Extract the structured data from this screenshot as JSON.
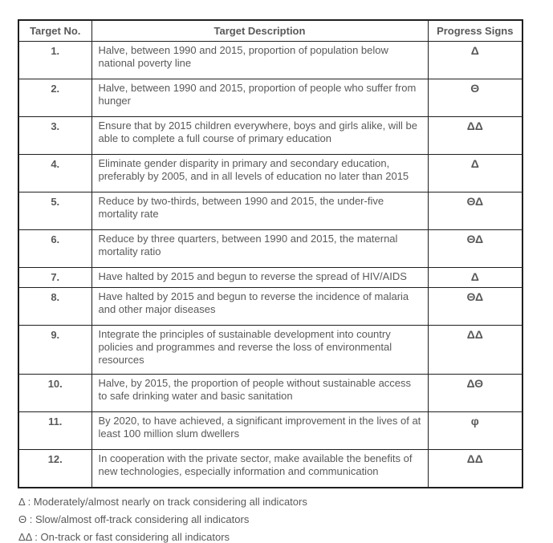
{
  "table": {
    "headers": {
      "no": "Target No.",
      "description": "Target Description",
      "progress": "Progress Signs"
    },
    "rows": [
      {
        "no": "1.",
        "description": "Halve, between 1990 and 2015, proportion of population below national poverty line",
        "progress": "Δ"
      },
      {
        "no": "2.",
        "description": "Halve, between 1990 and 2015, proportion of people who suffer from hunger",
        "progress": "Θ"
      },
      {
        "no": "3.",
        "description": "Ensure that by 2015 children everywhere, boys and girls alike, will be able to complete a full course of primary education",
        "progress": "ΔΔ"
      },
      {
        "no": "4.",
        "description": "Eliminate gender disparity in primary and secondary education, preferably by 2005, and in all levels of education no later than 2015",
        "progress": "Δ"
      },
      {
        "no": "5.",
        "description": "Reduce by two-thirds, between 1990 and 2015, the under-five mortality rate",
        "progress": "ΘΔ"
      },
      {
        "no": "6.",
        "description": "Reduce by three quarters, between 1990 and 2015, the maternal mortality ratio",
        "progress": "ΘΔ"
      },
      {
        "no": "7.",
        "description": "Have halted by 2015 and begun to reverse the spread of HIV/AIDS",
        "progress": "Δ"
      },
      {
        "no": "8.",
        "description": "Have halted by 2015 and begun to reverse the incidence of malaria and other major diseases",
        "progress": "ΘΔ"
      },
      {
        "no": "9.",
        "description": "Integrate the principles of sustainable development into country policies and programmes and reverse the loss of environmental resources",
        "progress": "ΔΔ"
      },
      {
        "no": "10.",
        "description": "Halve, by 2015, the proportion of people without sustainable access to safe drinking water and basic sanitation",
        "progress": "ΔΘ"
      },
      {
        "no": "11.",
        "description": "By 2020, to have achieved, a significant improvement in the lives of at least 100 million slum dwellers",
        "progress": "φ"
      },
      {
        "no": "12.",
        "description": "In cooperation with the private sector, make available the benefits of new technologies, especially information and communication",
        "progress": "ΔΔ"
      }
    ]
  },
  "legend": {
    "items": [
      "Δ : Moderately/almost nearly on track considering all indicators",
      "Θ : Slow/almost off-track considering all indicators",
      "ΔΔ : On-track or fast considering all indicators"
    ]
  },
  "colors": {
    "text": "#595959",
    "border": "#1f1f1f",
    "background": "#ffffff"
  }
}
